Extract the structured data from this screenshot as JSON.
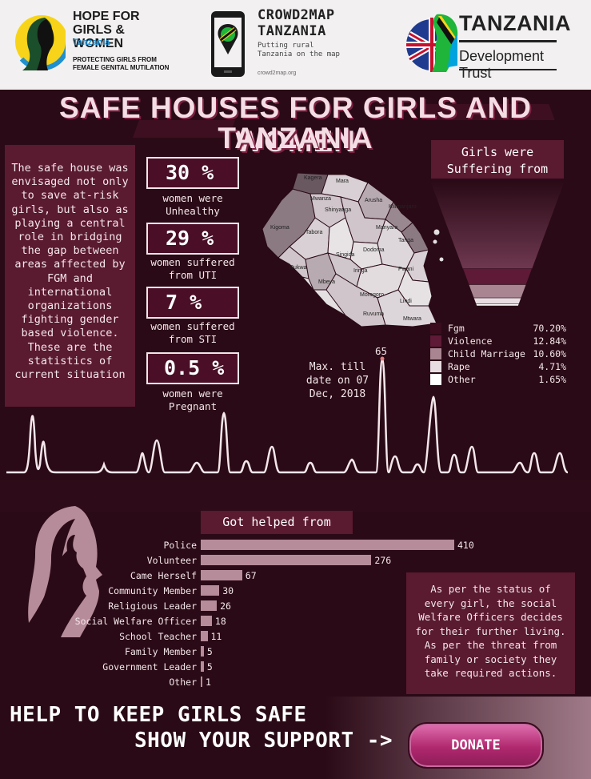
{
  "header": {
    "logo1": {
      "title_line1": "HOPE FOR",
      "title_line2": "GIRLS & WOMEN",
      "country": "Tanzania",
      "tagline1": "PROTECTING GIRLS FROM",
      "tagline2": "FEMALE GENITAL MUTILATION"
    },
    "logo2": {
      "title_line1": "CROWD2MAP",
      "title_line2": "TANZANIA",
      "sub1": "Putting rural",
      "sub2": "Tanzania on the map",
      "url": "crowd2map.org"
    },
    "logo3": {
      "title": "TANZANIA",
      "subtitle": "Development Trust"
    }
  },
  "title": {
    "line1": "SAFE HOUSES FOR GIRLS AND WOMEN",
    "line2": "TANZANIA"
  },
  "intro_text": "The safe house was envisaged not only to save at-risk girls, but also as playing a central role in bridging the gap between areas affected by FGM and international organizations fighting gender based violence. These are the statistics of current situation",
  "stats": [
    {
      "value": "30 %",
      "caption1": "women were",
      "caption2": "Unhealthy"
    },
    {
      "value": "29 %",
      "caption1": "women suffered",
      "caption2": "from UTI"
    },
    {
      "value": "7 %",
      "caption1": "women suffered",
      "caption2": "from STI"
    },
    {
      "value": "0.5 %",
      "caption1": "women were",
      "caption2": "Pregnant"
    }
  ],
  "map_regions": [
    "Kagera",
    "Mara",
    "Mwanza",
    "Arusha",
    "Shinyanga",
    "Kilimanjaro",
    "Manyara",
    "Kigoma",
    "Tabora",
    "Tanga",
    "Singida",
    "Dodoma",
    "Pwani",
    "Rukwa",
    "Mbeya",
    "Iringa",
    "Morogoro",
    "Lindi",
    "Ruvuma",
    "Mtwara"
  ],
  "funnel_title": {
    "line1": "Girls were",
    "line2": "Suffering from"
  },
  "max_note": {
    "value": "65",
    "line1": "Max. till",
    "line2": "date on 07",
    "line3": "Dec, 2018"
  },
  "helped_title": "Got helped from",
  "side_note": "As per the status of every girl, the social Welfare Officers decides for their further living. As per the threat from family or society they take required actions.",
  "footer": {
    "line1": "HELP TO KEEP GIRLS SAFE",
    "line2": "SHOW YOUR SUPPORT ->",
    "donate_label": "DONATE"
  },
  "colors": {
    "background": "#2a0a16",
    "panel": "#5a1a30",
    "bar": "#b68c9a",
    "accent": "#c2185b"
  },
  "chart_data": [
    {
      "type": "funnel",
      "categories": [
        "Fgm",
        "Violence",
        "Child Marriage",
        "Rape",
        "Other"
      ],
      "values": [
        70.2,
        12.84,
        10.6,
        4.71,
        1.65
      ],
      "value_labels": [
        "70.20%",
        "12.84%",
        "10.60%",
        "4.71%",
        "1.65%"
      ],
      "colors": [
        "#3a0c1e",
        "#5e1a36",
        "#a98592",
        "#e8dde1",
        "#ffffff"
      ]
    },
    {
      "type": "bar",
      "orientation": "horizontal",
      "categories": [
        "Police",
        "Volunteer",
        "Came Herself",
        "Community Member",
        "Religious Leader",
        "Social Welfare Officer",
        "School Teacher",
        "Family Member",
        "Government Leader",
        "Other"
      ],
      "values": [
        410,
        276,
        67,
        30,
        26,
        18,
        11,
        5,
        5,
        1
      ]
    }
  ]
}
